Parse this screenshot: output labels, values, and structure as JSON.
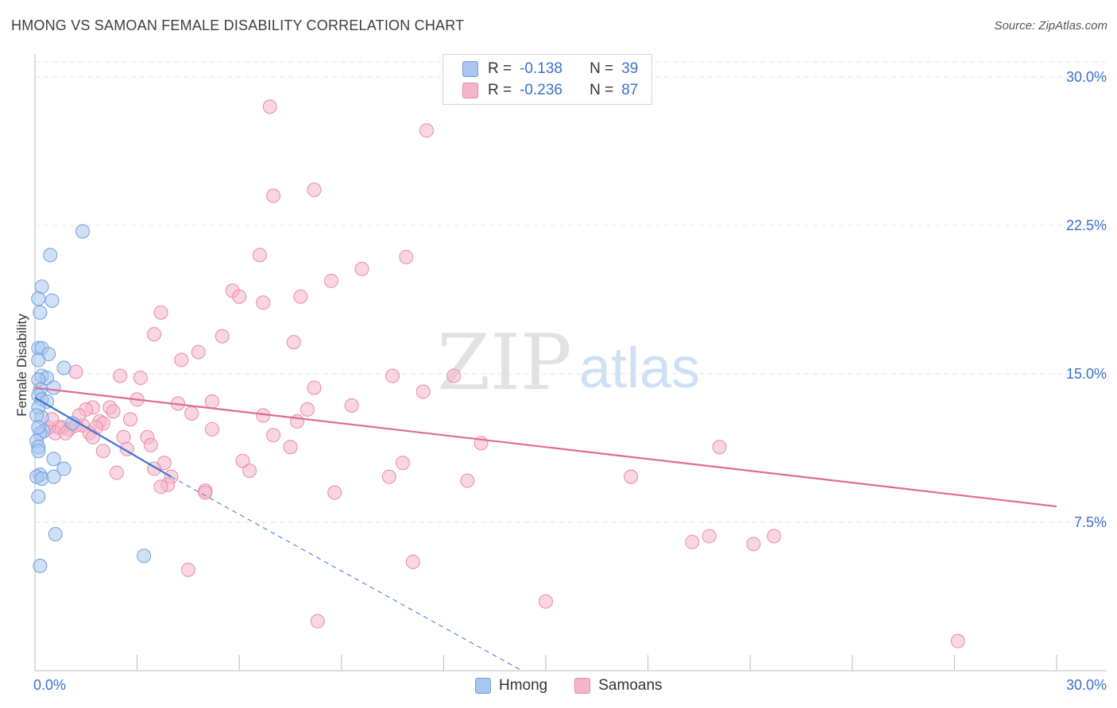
{
  "title": "HMONG VS SAMOAN FEMALE DISABILITY CORRELATION CHART",
  "source": "Source: ZipAtlas.com",
  "watermark": {
    "zip": "ZIP",
    "atlas": "atlas"
  },
  "legend_stats": [
    {
      "r_label": "R =",
      "r_value": "-0.138",
      "n_label": "N =",
      "n_value": "39"
    },
    {
      "r_label": "R =",
      "r_value": "-0.236",
      "n_label": "N =",
      "n_value": "87"
    }
  ],
  "colors": {
    "hmong_fill": "#a9c6ef",
    "hmong_stroke": "#6f9fe0",
    "hmong_line": "#3a74d4",
    "samoan_fill": "#f5b5c8",
    "samoan_stroke": "#ea8aa8",
    "samoan_line": "#e06a95",
    "tick_text": "#3b6fd0",
    "grid": "#e4e4e4"
  },
  "chart_data": {
    "type": "scatter",
    "title": "HMONG VS SAMOAN FEMALE DISABILITY CORRELATION CHART",
    "ylabel": "Female Disability",
    "xlabel": "",
    "xlim": [
      0,
      30
    ],
    "ylim": [
      0,
      31
    ],
    "x_tick_labels": [
      "0.0%",
      "30.0%"
    ],
    "y_ticks": [
      7.5,
      15.0,
      22.5,
      30.0
    ],
    "y_tick_labels": [
      "7.5%",
      "15.0%",
      "22.5%",
      "30.0%"
    ],
    "grid": "horizontal dashed",
    "legend_position": "bottom",
    "series": [
      {
        "name": "Hmong",
        "r": -0.138,
        "n": 39,
        "points": [
          [
            0.2,
            19.4
          ],
          [
            0.1,
            18.8
          ],
          [
            0.5,
            18.7
          ],
          [
            0.15,
            18.1
          ],
          [
            0.45,
            21.0
          ],
          [
            1.4,
            22.2
          ],
          [
            0.1,
            16.3
          ],
          [
            0.2,
            16.3
          ],
          [
            0.4,
            16.0
          ],
          [
            0.1,
            15.7
          ],
          [
            0.85,
            15.3
          ],
          [
            0.2,
            14.9
          ],
          [
            0.35,
            14.8
          ],
          [
            0.1,
            14.7
          ],
          [
            0.55,
            14.3
          ],
          [
            0.15,
            14.2
          ],
          [
            0.1,
            13.9
          ],
          [
            0.2,
            13.7
          ],
          [
            0.35,
            13.6
          ],
          [
            0.1,
            13.3
          ],
          [
            0.2,
            12.8
          ],
          [
            0.05,
            12.9
          ],
          [
            1.1,
            12.5
          ],
          [
            0.25,
            12.1
          ],
          [
            0.15,
            12.0
          ],
          [
            0.05,
            11.6
          ],
          [
            0.1,
            11.3
          ],
          [
            0.1,
            11.1
          ],
          [
            0.55,
            10.7
          ],
          [
            0.85,
            10.2
          ],
          [
            0.15,
            9.9
          ],
          [
            0.05,
            9.8
          ],
          [
            0.2,
            9.7
          ],
          [
            0.55,
            9.8
          ],
          [
            0.1,
            8.8
          ],
          [
            0.6,
            6.9
          ],
          [
            3.2,
            5.8
          ],
          [
            0.15,
            5.3
          ],
          [
            0.1,
            12.3
          ]
        ],
        "trend": {
          "x": [
            0,
            4.0
          ],
          "y": [
            13.8,
            9.8
          ]
        },
        "trend_extension": {
          "x": [
            4.0,
            14.3
          ],
          "y": [
            9.8,
            0
          ]
        }
      },
      {
        "name": "Samoans",
        "r": -0.236,
        "n": 87,
        "points": [
          [
            6.9,
            28.5
          ],
          [
            11.5,
            27.3
          ],
          [
            8.2,
            24.3
          ],
          [
            7.0,
            24.0
          ],
          [
            6.6,
            21.0
          ],
          [
            10.9,
            20.9
          ],
          [
            9.6,
            20.3
          ],
          [
            8.7,
            19.7
          ],
          [
            5.8,
            19.2
          ],
          [
            6.0,
            18.9
          ],
          [
            7.8,
            18.9
          ],
          [
            6.7,
            18.6
          ],
          [
            3.7,
            18.1
          ],
          [
            3.5,
            17.0
          ],
          [
            5.5,
            16.9
          ],
          [
            7.6,
            16.6
          ],
          [
            4.8,
            16.1
          ],
          [
            4.3,
            15.7
          ],
          [
            1.2,
            15.1
          ],
          [
            2.5,
            14.9
          ],
          [
            3.1,
            14.8
          ],
          [
            10.5,
            14.9
          ],
          [
            12.3,
            14.9
          ],
          [
            8.2,
            14.3
          ],
          [
            11.4,
            14.1
          ],
          [
            3.0,
            13.7
          ],
          [
            5.2,
            13.6
          ],
          [
            4.2,
            13.5
          ],
          [
            9.3,
            13.4
          ],
          [
            1.7,
            13.3
          ],
          [
            2.2,
            13.3
          ],
          [
            1.5,
            13.2
          ],
          [
            2.3,
            13.1
          ],
          [
            8.0,
            13.2
          ],
          [
            4.6,
            13.0
          ],
          [
            6.7,
            12.9
          ],
          [
            2.8,
            12.7
          ],
          [
            1.9,
            12.6
          ],
          [
            2.0,
            12.5
          ],
          [
            1.8,
            12.3
          ],
          [
            1.4,
            12.4
          ],
          [
            7.7,
            12.6
          ],
          [
            0.8,
            12.3
          ],
          [
            1.0,
            12.2
          ],
          [
            1.2,
            12.4
          ],
          [
            0.6,
            12.0
          ],
          [
            0.4,
            12.3
          ],
          [
            0.7,
            12.3
          ],
          [
            0.9,
            12.0
          ],
          [
            1.6,
            12.0
          ],
          [
            1.7,
            11.8
          ],
          [
            2.6,
            11.8
          ],
          [
            3.3,
            11.8
          ],
          [
            5.2,
            12.2
          ],
          [
            3.4,
            11.4
          ],
          [
            2.0,
            11.1
          ],
          [
            2.7,
            11.2
          ],
          [
            7.5,
            11.3
          ],
          [
            13.1,
            11.5
          ],
          [
            20.1,
            11.3
          ],
          [
            3.8,
            10.5
          ],
          [
            6.1,
            10.6
          ],
          [
            10.8,
            10.5
          ],
          [
            3.5,
            10.2
          ],
          [
            6.3,
            10.1
          ],
          [
            2.4,
            10.0
          ],
          [
            4.0,
            9.8
          ],
          [
            10.4,
            9.8
          ],
          [
            12.7,
            9.6
          ],
          [
            17.5,
            9.8
          ],
          [
            3.9,
            9.4
          ],
          [
            3.7,
            9.3
          ],
          [
            5.0,
            9.1
          ],
          [
            5.0,
            9.0
          ],
          [
            8.8,
            9.0
          ],
          [
            19.3,
            6.5
          ],
          [
            19.8,
            6.8
          ],
          [
            21.1,
            6.4
          ],
          [
            21.7,
            6.8
          ],
          [
            11.1,
            5.5
          ],
          [
            4.5,
            5.1
          ],
          [
            15.0,
            3.5
          ],
          [
            8.3,
            2.5
          ],
          [
            27.1,
            1.5
          ],
          [
            1.3,
            12.9
          ],
          [
            0.5,
            12.7
          ],
          [
            7.0,
            11.9
          ]
        ],
        "trend": {
          "x": [
            0,
            30
          ],
          "y": [
            14.3,
            8.3
          ]
        }
      }
    ]
  }
}
